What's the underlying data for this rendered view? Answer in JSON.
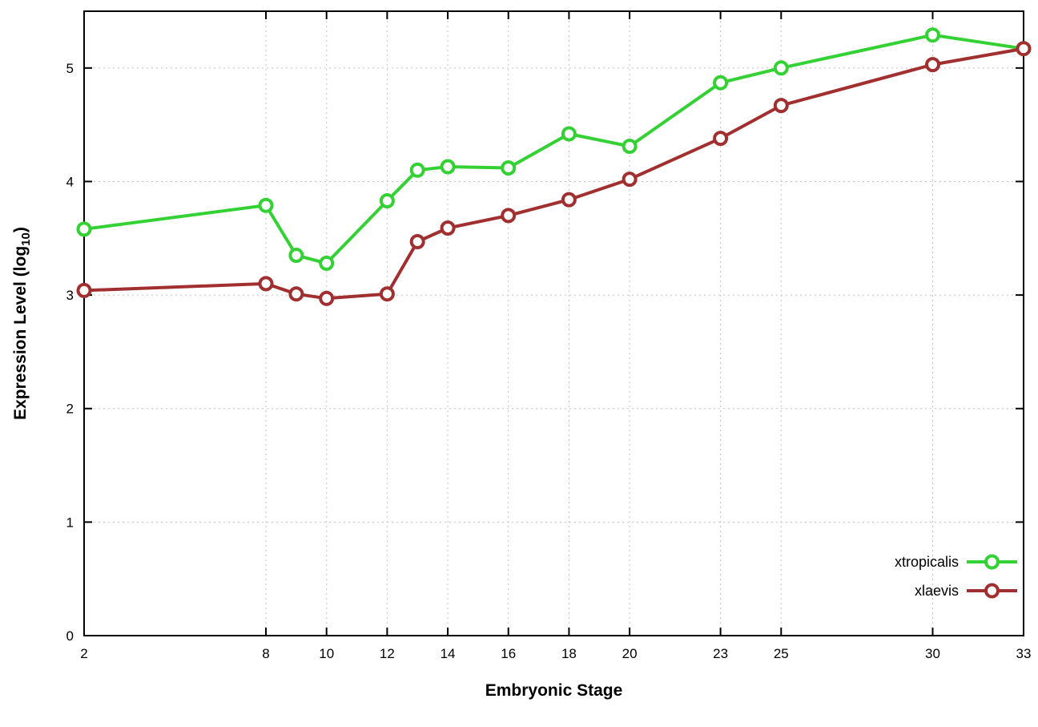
{
  "page": {
    "background": "#ffffff"
  },
  "chart_data": {
    "type": "line",
    "title": "",
    "xlabel": "Embryonic Stage",
    "ylabel_parts": {
      "main": "Expression Level (log",
      "sub": "10",
      "close": ")"
    },
    "x": [
      2,
      8,
      9,
      10,
      12,
      13,
      14,
      16,
      18,
      20,
      23,
      25,
      30,
      33
    ],
    "series": [
      {
        "name": "xtropicalis",
        "color": "#33d133",
        "values": [
          3.58,
          3.79,
          3.35,
          3.28,
          3.83,
          4.1,
          4.13,
          4.12,
          4.42,
          4.31,
          4.87,
          5.0,
          5.29,
          5.17
        ]
      },
      {
        "name": "xlaevis",
        "color": "#a22f2f",
        "values": [
          3.04,
          3.1,
          3.01,
          2.97,
          3.01,
          3.47,
          3.59,
          3.7,
          3.84,
          4.02,
          4.38,
          4.67,
          5.03,
          5.17
        ]
      }
    ],
    "xticks": [
      2,
      8,
      10,
      12,
      14,
      16,
      18,
      20,
      23,
      25,
      30,
      33
    ],
    "yticks": [
      0,
      1,
      2,
      3,
      4,
      5
    ],
    "xlim": [
      2,
      33
    ],
    "ylim": [
      0,
      5.5
    ],
    "grid": true,
    "legend_position": "bottom-right",
    "marker": "open-circle",
    "axis_color": "#000000",
    "grid_color": "#c4c4c4"
  }
}
